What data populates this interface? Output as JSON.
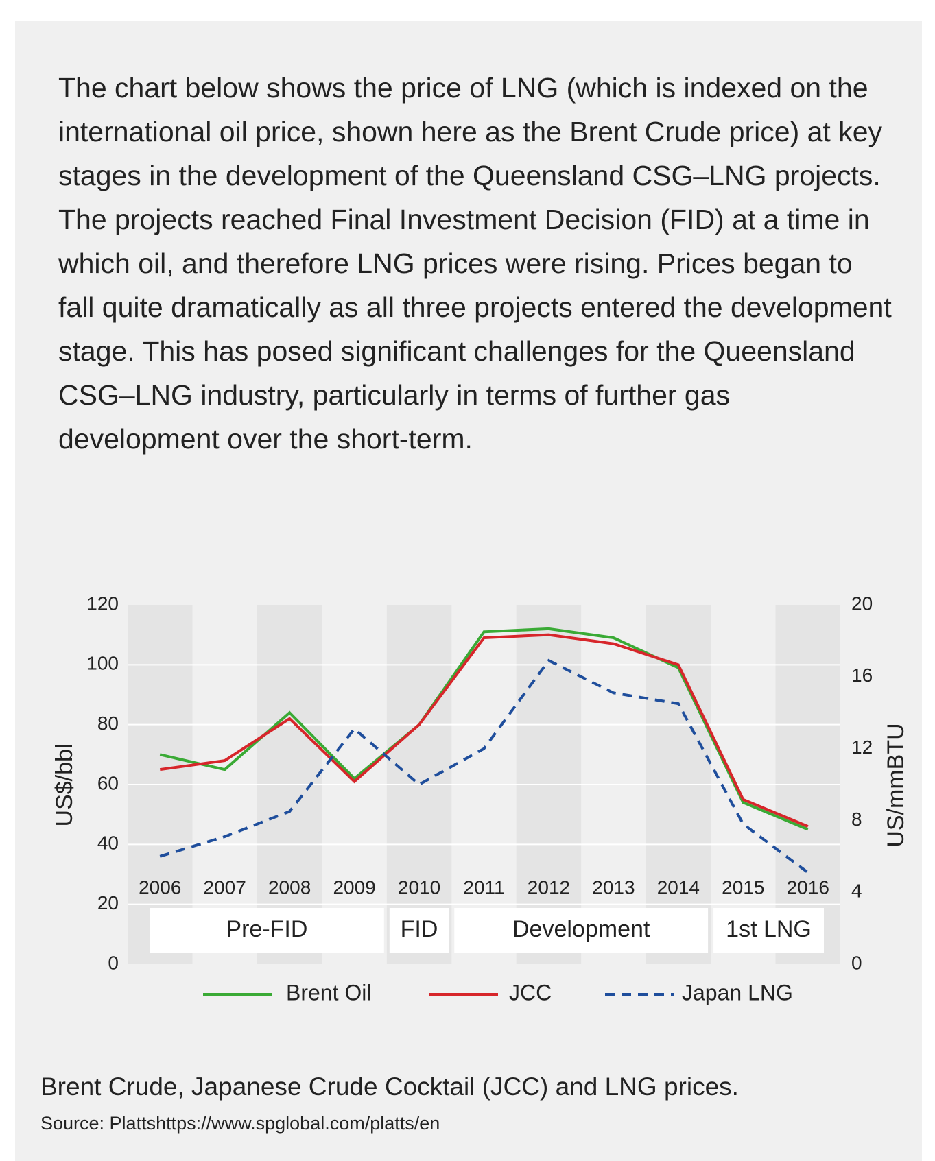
{
  "intro": "The chart below shows the price of LNG (which is indexed on the international oil price, shown here as the Brent Crude price) at key stages in the development of the Queensland CSG–LNG projects. The projects reached Final Investment Decision (FID) at a time in which oil, and therefore LNG prices were rising. Prices began to fall quite dramatically as all three projects entered the development stage. This has posed significant challenges for the Queensland CSG–LNG industry, particularly in terms of further gas development over the short-term.",
  "caption": "Brent Crude, Japanese Crude Cocktail (JCC) and LNG prices.",
  "source": "Source: Plattshttps://www.spglobal.com/platts/en",
  "chart_data": {
    "type": "line",
    "ylabel": "US$/bbl",
    "y2label": "US/mmBTU",
    "categories": [
      "2006",
      "2007",
      "2008",
      "2009",
      "2010",
      "2011",
      "2012",
      "2013",
      "2014",
      "2015",
      "2016"
    ],
    "stages": [
      "Pre-FID",
      "FID",
      "Development",
      "1st LNG"
    ],
    "series": [
      {
        "name": "Brent Oil",
        "color": "#3aaa35",
        "values": [
          70,
          65,
          84,
          62,
          80,
          111,
          112,
          109,
          99,
          54,
          45
        ]
      },
      {
        "name": "JCC",
        "color": "#d7262b",
        "values": [
          65,
          68,
          82,
          61,
          80,
          109,
          110,
          107,
          100,
          55,
          46
        ]
      },
      {
        "name": "Japan LNG",
        "color": "#1f4e9c",
        "dashed": true,
        "axis": "y2",
        "values": [
          6,
          7.1,
          8.5,
          13.1,
          10,
          12,
          16.9,
          15.1,
          14.5,
          7.8,
          5.1
        ]
      }
    ],
    "ylim": [
      0,
      120
    ],
    "yticks": [
      0,
      20,
      40,
      60,
      80,
      100,
      120
    ],
    "y2lim": [
      0,
      20
    ],
    "y2ticks": [
      0,
      4,
      8,
      12,
      16,
      20
    ],
    "grid": true,
    "legend": "bottom"
  }
}
